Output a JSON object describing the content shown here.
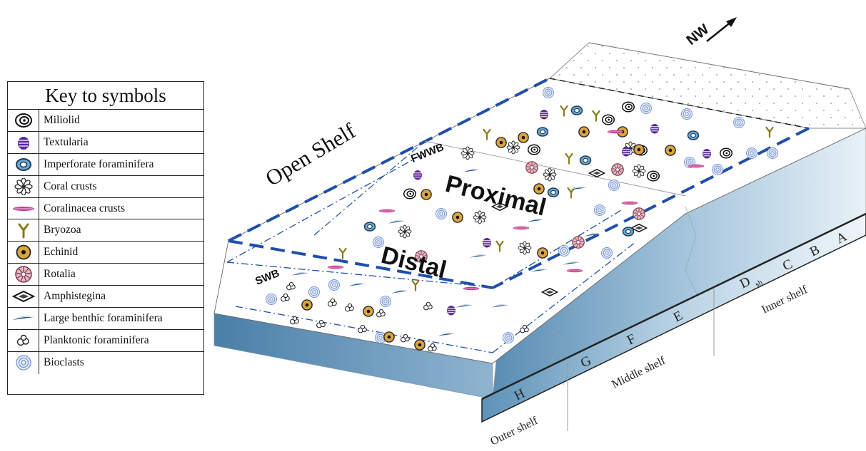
{
  "legend": {
    "title": "Key to symbols",
    "items": [
      {
        "key": "miliolid",
        "label": "Miliolid",
        "icon": "miliolid-icon"
      },
      {
        "key": "textularia",
        "label": "Textularia",
        "icon": "textularia-icon"
      },
      {
        "key": "imperforate",
        "label": "Imperforate foraminifera",
        "icon": "imperforate-foraminifera-icon"
      },
      {
        "key": "coral",
        "label": "Coral crusts",
        "icon": "coral-crusts-icon"
      },
      {
        "key": "coralinacea",
        "label": "Coralinacea crusts",
        "icon": "coralinacea-crusts-icon"
      },
      {
        "key": "bryozoa",
        "label": "Bryozoa",
        "icon": "bryozoa-icon"
      },
      {
        "key": "echinid",
        "label": "Echinid",
        "icon": "echinid-icon"
      },
      {
        "key": "rotalia",
        "label": "Rotalia",
        "icon": "rotalia-icon"
      },
      {
        "key": "amphistegina",
        "label": "Amphistegina",
        "icon": "amphistegina-icon"
      },
      {
        "key": "lbf",
        "label": "Large benthic foraminifera",
        "icon": "large-benthic-foraminifera-icon"
      },
      {
        "key": "planktonic",
        "label": "Planktonic foraminifera",
        "icon": "planktonic-foraminifera-icon"
      },
      {
        "key": "bioclasts",
        "label": "Bioclasts",
        "icon": "bioclasts-icon"
      }
    ]
  },
  "diagram": {
    "north_label": "NW",
    "open_shelf": "Open Shelf",
    "fwwb": "FWWB",
    "swb": "SWB",
    "proximal": "Proximal",
    "distal": "Distal",
    "zones": {
      "a": "A",
      "b": "B",
      "c": "C",
      "d": "D",
      "d_sub": "sh",
      "e": "E",
      "f": "F",
      "g": "G",
      "h": "H"
    },
    "shelves": {
      "inner": "Inner shelf",
      "middle": "Middle shelf",
      "outer": "Outer shelf"
    }
  },
  "colors": {
    "boundary_blue": "#1f4fa8",
    "textularia": "#5b2a9a",
    "coralinacea": "#c93a8f",
    "bryozoa": "#8a7a1a",
    "echinid": "#d9a441",
    "bioclast": "#6f8fd0",
    "lbf": "#23558f",
    "depth_dark": "#5a8db3",
    "depth_light": "#d7e6f1"
  }
}
